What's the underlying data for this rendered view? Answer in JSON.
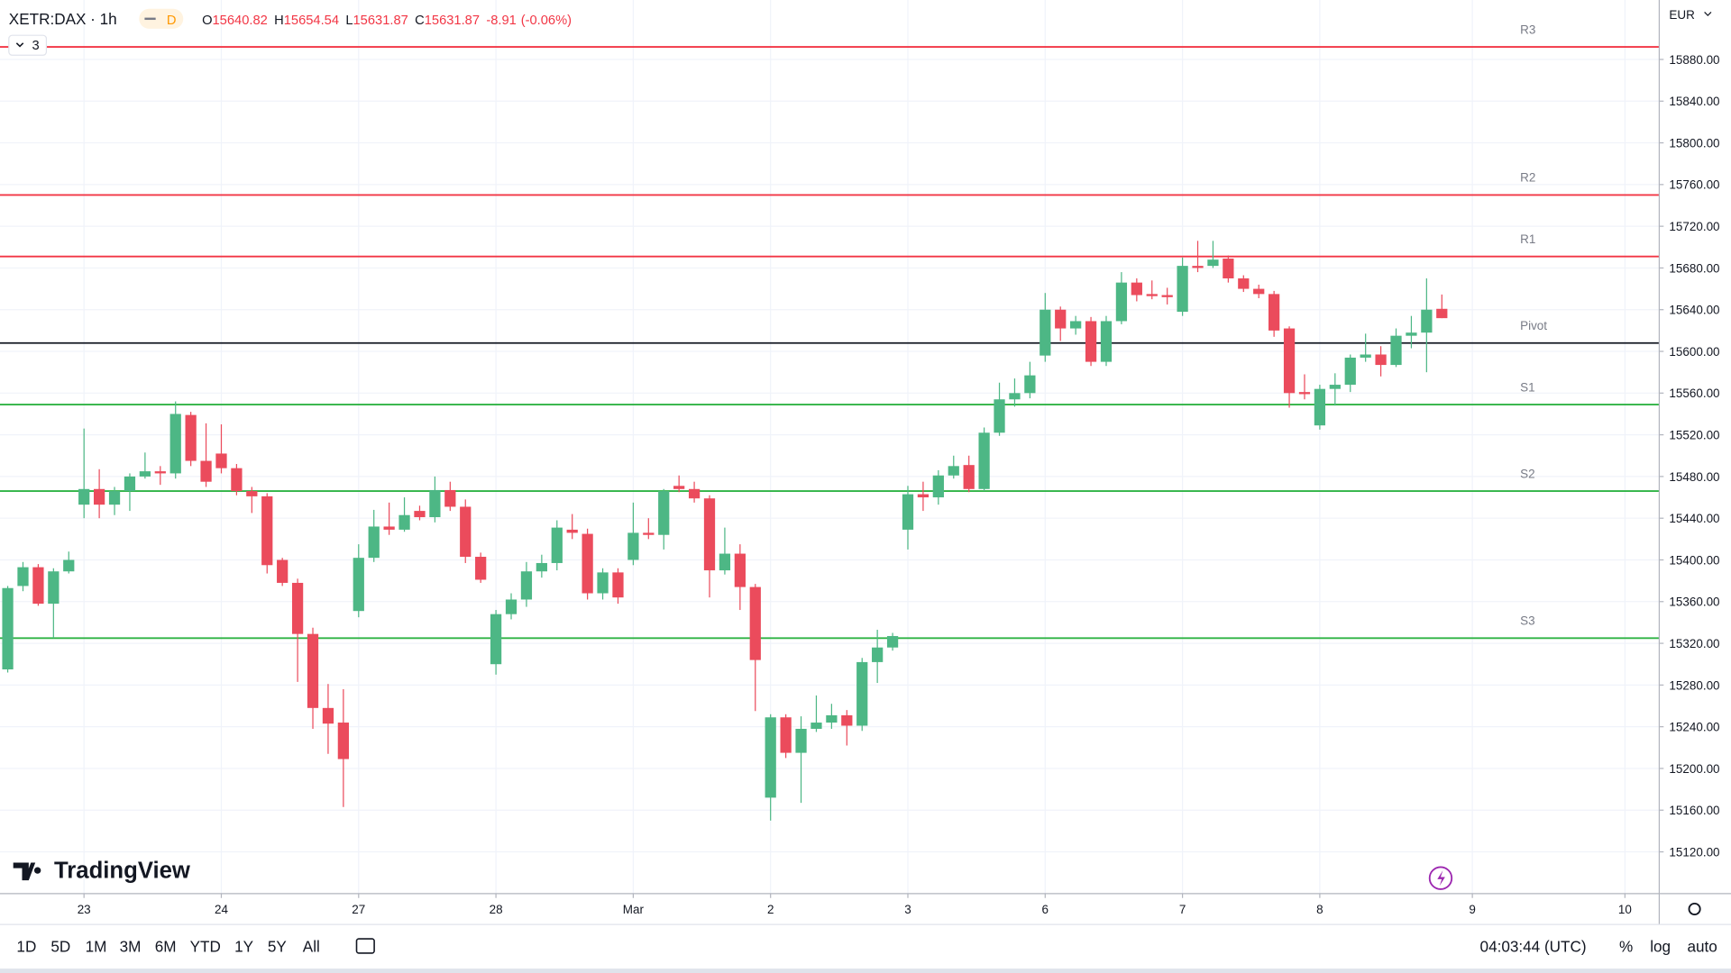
{
  "header": {
    "symbol": "XETR:DAX · 1h",
    "badge": "D",
    "ohlc_labels": [
      "O",
      "H",
      "L",
      "C"
    ],
    "change": "-8.91",
    "change_pct": "(-0.06%)",
    "indicators": 3
  },
  "branding": "TradingView",
  "footer": {
    "ranges": [
      "1D",
      "5D",
      "1M",
      "3M",
      "6M",
      "YTD",
      "1Y",
      "5Y",
      "All"
    ],
    "clock": "04:03:44 (UTC)",
    "options": [
      "%",
      "log",
      "auto"
    ]
  },
  "chart_data": {
    "type": "candlestick",
    "currency": "EUR",
    "up_color": "#4db785",
    "down_color": "#eb4b5c",
    "grid": true,
    "ylim": [
      15080,
      15937
    ],
    "yticks": [
      {
        "value": 15880,
        "label": "15880.00"
      },
      {
        "value": 15840,
        "label": "15840.00"
      },
      {
        "value": 15800,
        "label": "15800.00"
      },
      {
        "value": 15760,
        "label": "15760.00"
      },
      {
        "value": 15720,
        "label": "15720.00"
      },
      {
        "value": 15680,
        "label": "15680.00"
      },
      {
        "value": 15640,
        "label": "15640.00"
      },
      {
        "value": 15600,
        "label": "15600.00"
      },
      {
        "value": 15560,
        "label": "15560.00"
      },
      {
        "value": 15520,
        "label": "15520.00"
      },
      {
        "value": 15480,
        "label": "15480.00"
      },
      {
        "value": 15440,
        "label": "15440.00"
      },
      {
        "value": 15400,
        "label": "15400.00"
      },
      {
        "value": 15360,
        "label": "15360.00"
      },
      {
        "value": 15320,
        "label": "15320.00"
      },
      {
        "value": 15280,
        "label": "15280.00"
      },
      {
        "value": 15240,
        "label": "15240.00"
      },
      {
        "value": 15200,
        "label": "15200.00"
      },
      {
        "value": 15160,
        "label": "15160.00"
      },
      {
        "value": 15120,
        "label": "15120.00"
      }
    ],
    "xticks": [
      {
        "value": 5,
        "label": "23"
      },
      {
        "value": 14,
        "label": "24"
      },
      {
        "value": 23,
        "label": "27"
      },
      {
        "value": 32,
        "label": "28"
      },
      {
        "value": 41,
        "label": "Mar"
      },
      {
        "value": 50,
        "label": "2"
      },
      {
        "value": 59,
        "label": "3"
      },
      {
        "value": 68,
        "label": "6"
      },
      {
        "value": 77,
        "label": "7"
      },
      {
        "value": 86,
        "label": "8"
      },
      {
        "value": 96,
        "label": "9"
      },
      {
        "value": 106,
        "label": "10"
      }
    ],
    "levels": [
      {
        "name": "R3",
        "value": 15892,
        "color": "#f23645"
      },
      {
        "name": "R2",
        "value": 15750,
        "color": "#f23645"
      },
      {
        "name": "R1",
        "value": 15691,
        "color": "#f23645"
      },
      {
        "name": "Pivot",
        "value": 15608,
        "color": "#131722"
      },
      {
        "name": "S1",
        "value": 15549,
        "color": "#2fb344"
      },
      {
        "name": "S2",
        "value": 15466,
        "color": "#2fb344"
      },
      {
        "name": "S3",
        "value": 15325,
        "color": "#2fb344"
      }
    ],
    "open": [
      15295,
      15375,
      15393,
      15358,
      15389,
      15453,
      15468,
      15453,
      15466,
      15480,
      15485,
      15483,
      15539,
      15495,
      15502,
      15488,
      15466,
      15461,
      15400,
      15378,
      15329,
      15258,
      15244,
      15351,
      15402,
      15432,
      15429,
      15447,
      15441,
      15467,
      15451,
      15403,
      15300,
      15348,
      15362,
      15389,
      15397,
      15429,
      15425,
      15368,
      15388,
      15400,
      15426,
      15424,
      15471,
      15468,
      15459,
      15390,
      15406,
      15374,
      15172,
      15249,
      15215,
      15238,
      15244,
      15251,
      15241,
      15302,
      15316,
      15429,
      15463,
      15460,
      15481,
      15491,
      15468,
      15522,
      15554,
      15560,
      15596,
      15640,
      15622,
      15629,
      15590,
      15629,
      15666,
      15655,
      15654,
      15638,
      15682,
      15682,
      15689,
      15670,
      15660,
      15655,
      15622,
      15561,
      15529,
      15564,
      15568,
      15594,
      15597,
      15587,
      15615,
      15618,
      15640.82
    ],
    "high": [
      15375,
      15398,
      15396,
      15392,
      15408,
      15526,
      15487,
      15470,
      15483,
      15503,
      15490,
      15552,
      15542,
      15531,
      15530,
      15492,
      15470,
      15464,
      15402,
      15382,
      15335,
      15281,
      15276,
      15415,
      15448,
      15455,
      15460,
      15452,
      15480,
      15475,
      15458,
      15407,
      15352,
      15368,
      15398,
      15405,
      15438,
      15444,
      15430,
      15392,
      15392,
      15455,
      15440,
      15468,
      15481,
      15475,
      15462,
      15431,
      15415,
      15377,
      15252,
      15252,
      15250,
      15270,
      15262,
      15256,
      15306,
      15333,
      15330,
      15471,
      15475,
      15486,
      15500,
      15500,
      15527,
      15570,
      15574,
      15590,
      15656,
      15643,
      15634,
      15633,
      15634,
      15676,
      15670,
      15668,
      15661,
      15690,
      15706,
      15706,
      15692,
      15673,
      15664,
      15658,
      15624,
      15578,
      15568,
      15579,
      15597,
      15617,
      15605,
      15622,
      15634,
      15670,
      15654.54
    ],
    "low": [
      15292,
      15370,
      15356,
      15325,
      15387,
      15440,
      15440,
      15443,
      15447,
      15478,
      15472,
      15478,
      15490,
      15470,
      15483,
      15462,
      15445,
      15387,
      15375,
      15283,
      15238,
      15214,
      15163,
      15345,
      15398,
      15424,
      15427,
      15438,
      15436,
      15447,
      15397,
      15378,
      15290,
      15343,
      15355,
      15383,
      15390,
      15420,
      15362,
      15362,
      15358,
      15395,
      15420,
      15410,
      15465,
      15455,
      15364,
      15386,
      15352,
      15255,
      15150,
      15210,
      15167,
      15235,
      15238,
      15222,
      15236,
      15282,
      15313,
      15410,
      15447,
      15453,
      15478,
      15465,
      15466,
      15519,
      15547,
      15555,
      15590,
      15610,
      15616,
      15586,
      15586,
      15626,
      15648,
      15650,
      15645,
      15634,
      15676,
      15680,
      15666,
      15657,
      15651,
      15614,
      15546,
      15554,
      15525,
      15548,
      15561,
      15590,
      15576,
      15585,
      15603,
      15580,
      15631.87
    ],
    "close": [
      15373,
      15393,
      15358,
      15389,
      15400,
      15468,
      15453,
      15466,
      15480,
      15485,
      15483,
      15540,
      15495,
      15475,
      15488,
      15466,
      15461,
      15395,
      15378,
      15329,
      15258,
      15243,
      15209,
      15402,
      15432,
      15429,
      15443,
      15441,
      15467,
      15451,
      15403,
      15381,
      15348,
      15362,
      15389,
      15397,
      15431,
      15426,
      15368,
      15388,
      15364,
      15426,
      15424,
      15466,
      15468,
      15459,
      15390,
      15406,
      15374,
      15304,
      15249,
      15215,
      15238,
      15244,
      15251,
      15241,
      15302,
      15316,
      15327,
      15463,
      15460,
      15481,
      15490,
      15468,
      15522,
      15554,
      15560,
      15577,
      15640,
      15622,
      15629,
      15590,
      15629,
      15666,
      15654,
      15653,
      15652,
      15682,
      15680,
      15688,
      15670,
      15660,
      15655,
      15620,
      15560,
      15559,
      15564,
      15568,
      15594,
      15597,
      15587,
      15615,
      15618,
      15640,
      15631.87
    ]
  }
}
